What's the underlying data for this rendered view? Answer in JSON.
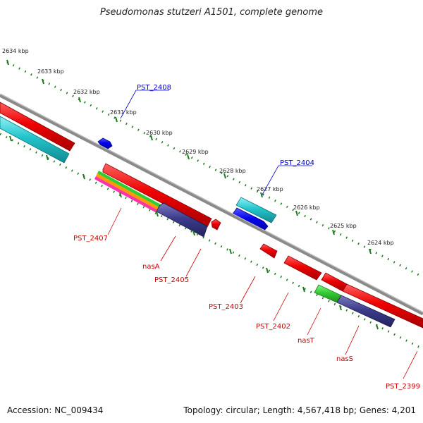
{
  "header": {
    "title": "Pseudomonas stutzeri A1501, complete genome"
  },
  "footer": {
    "accession": "Accession: NC_009434",
    "summary": "Topology: circular; Length: 4,567,418 bp; Genes: 4,201"
  },
  "ruler": {
    "labels": [
      "2634 kbp",
      "2633 kbp",
      "2632 kbp",
      "2631 kbp",
      "2630 kbp",
      "2629 kbp",
      "2628 kbp",
      "2627 kbp",
      "2626 kbp",
      "2625 kbp",
      "2624 kbp"
    ]
  },
  "gene_labels": {
    "forward": [
      "PST_2408",
      "PST_2404"
    ],
    "reverse": [
      "PST_2407",
      "nasA",
      "PST_2405",
      "PST_2403",
      "PST_2402",
      "nasT",
      "nasS",
      "PST_2399"
    ]
  },
  "colors": {
    "forward_label": "#0000cc",
    "reverse_label": "#cc0000",
    "red_gene": "#ee0000",
    "blue_gene": "#0000ee",
    "cyan_gene": "#22c4cc",
    "navy_gene": "#3c3c8c",
    "green_gene": "#33cc33",
    "backbone": "#8a8a8a",
    "tick": "#1e7a1e"
  }
}
